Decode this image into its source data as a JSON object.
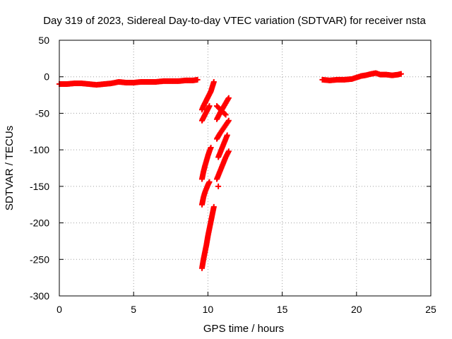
{
  "chart_data": {
    "type": "scatter",
    "title": "Day 319 of 2023, Sidereal Day-to-day VTEC variation (SDTVAR) for receiver nsta",
    "xlabel": "GPS time / hours",
    "ylabel": "SDTVAR / TECUs",
    "xlim": [
      0,
      25
    ],
    "ylim": [
      -300,
      50
    ],
    "xticks": [
      0,
      5,
      10,
      15,
      20,
      25
    ],
    "yticks": [
      50,
      0,
      -50,
      -100,
      -150,
      -200,
      -250,
      -300
    ],
    "grid": true,
    "legend": "none",
    "marker": "plus",
    "color": "#ff0000",
    "series": [
      {
        "x": [
          0,
          0.5,
          1,
          1.5,
          2,
          2.5,
          3,
          3.5,
          4,
          4.5,
          5,
          5.5,
          6,
          6.5,
          7,
          7.5,
          8,
          8.5,
          9,
          9.3
        ],
        "y": [
          -10,
          -10,
          -9,
          -9,
          -10,
          -11,
          -10,
          -9,
          -7,
          -8,
          -8,
          -7,
          -7,
          -7,
          -6,
          -6,
          -6,
          -5,
          -5,
          -4
        ]
      },
      {
        "x": [
          9.6,
          9.7,
          9.8,
          9.9,
          10.0,
          10.1,
          10.2,
          10.4
        ],
        "y": [
          -45,
          -40,
          -36,
          -32,
          -28,
          -24,
          -20,
          -7
        ]
      },
      {
        "x": [
          9.6,
          9.7,
          9.8,
          9.9,
          10.0,
          10.1
        ],
        "y": [
          -60,
          -56,
          -52,
          -48,
          -44,
          -40
        ]
      },
      {
        "x": [
          9.6,
          9.7,
          9.8,
          9.9,
          10.0,
          10.1,
          10.2
        ],
        "y": [
          -140,
          -130,
          -122,
          -115,
          -108,
          -102,
          -97
        ]
      },
      {
        "x": [
          9.6,
          9.7,
          9.8,
          9.9,
          10.0,
          10.1
        ],
        "y": [
          -175,
          -165,
          -158,
          -153,
          -148,
          -144
        ]
      },
      {
        "x": [
          9.6,
          9.7,
          9.8,
          9.9,
          10.0,
          10.1,
          10.2,
          10.3,
          10.4
        ],
        "y": [
          -262,
          -250,
          -240,
          -230,
          -218,
          -208,
          -198,
          -188,
          -178
        ]
      },
      {
        "x": [
          10.6,
          10.8,
          11.0,
          11.2,
          11.4
        ],
        "y": [
          -58,
          -50,
          -43,
          -36,
          -29
        ]
      },
      {
        "x": [
          10.6,
          10.8,
          11.0,
          11.2,
          11.4
        ],
        "y": [
          -85,
          -78,
          -72,
          -66,
          -60
        ]
      },
      {
        "x": [
          10.6,
          10.8,
          11.0,
          11.2
        ],
        "y": [
          -40,
          -44,
          -48,
          -52
        ]
      },
      {
        "x": [
          10.7,
          10.9,
          11.1,
          11.3
        ],
        "y": [
          -110,
          -100,
          -90,
          -80
        ]
      },
      {
        "x": [
          10.6,
          10.8,
          11.0,
          11.2,
          11.4
        ],
        "y": [
          -140,
          -130,
          -120,
          -110,
          -102
        ]
      },
      {
        "x": [
          10.7
        ],
        "y": [
          -150
        ]
      },
      {
        "x": [
          17.7,
          18.2,
          18.7,
          19.2,
          19.7,
          20.0,
          20.3,
          20.6,
          21.0,
          21.3,
          21.6,
          22.0,
          22.4,
          22.8,
          23.0
        ],
        "y": [
          -4,
          -5,
          -4,
          -4,
          -3,
          -1,
          1,
          2,
          4,
          5,
          3,
          3,
          2,
          3,
          4
        ]
      }
    ]
  }
}
